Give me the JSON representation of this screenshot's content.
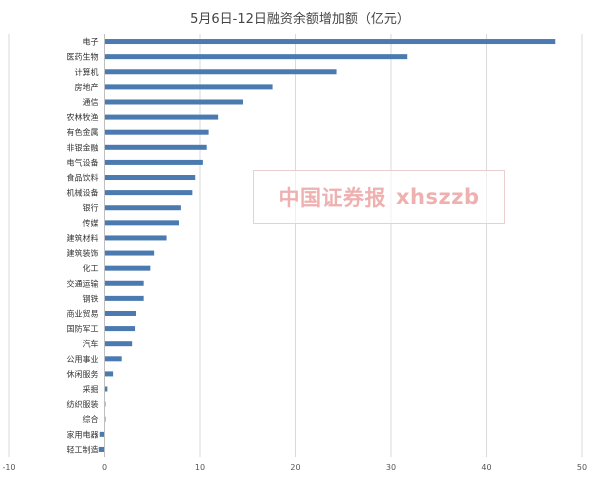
{
  "chart_data": {
    "type": "bar",
    "orientation": "horizontal",
    "title": "5月6日-12日融资余额增加额（亿元）",
    "xlabel": "",
    "ylabel": "",
    "xlim": [
      -10,
      50
    ],
    "xticks": [
      -10,
      0,
      10,
      20,
      30,
      40,
      50
    ],
    "grid": true,
    "legend": "none",
    "categories": [
      "电子",
      "医药生物",
      "计算机",
      "房地产",
      "通信",
      "农林牧渔",
      "有色金属",
      "非银金融",
      "电气设备",
      "食品饮料",
      "机械设备",
      "银行",
      "传媒",
      "建筑材料",
      "建筑装饰",
      "化工",
      "交通运输",
      "钢铁",
      "商业贸易",
      "国防军工",
      "汽车",
      "公用事业",
      "休闲服务",
      "采掘",
      "纺织服装",
      "综合",
      "家用电器",
      "轻工制造"
    ],
    "series": [
      {
        "color": "#4a7ab0",
        "values": [
          47.2,
          31.7,
          24.3,
          17.6,
          14.5,
          11.9,
          10.9,
          10.7,
          10.3,
          9.5,
          9.2,
          8.0,
          7.8,
          6.5,
          5.2,
          4.8,
          4.1,
          4.1,
          3.3,
          3.2,
          2.9,
          1.8,
          0.9,
          0.3,
          0.1,
          0.1,
          -0.5,
          -0.6
        ]
      }
    ]
  },
  "watermark": {
    "text_cn": "中国证券报",
    "text_latin": "xhszzb"
  }
}
